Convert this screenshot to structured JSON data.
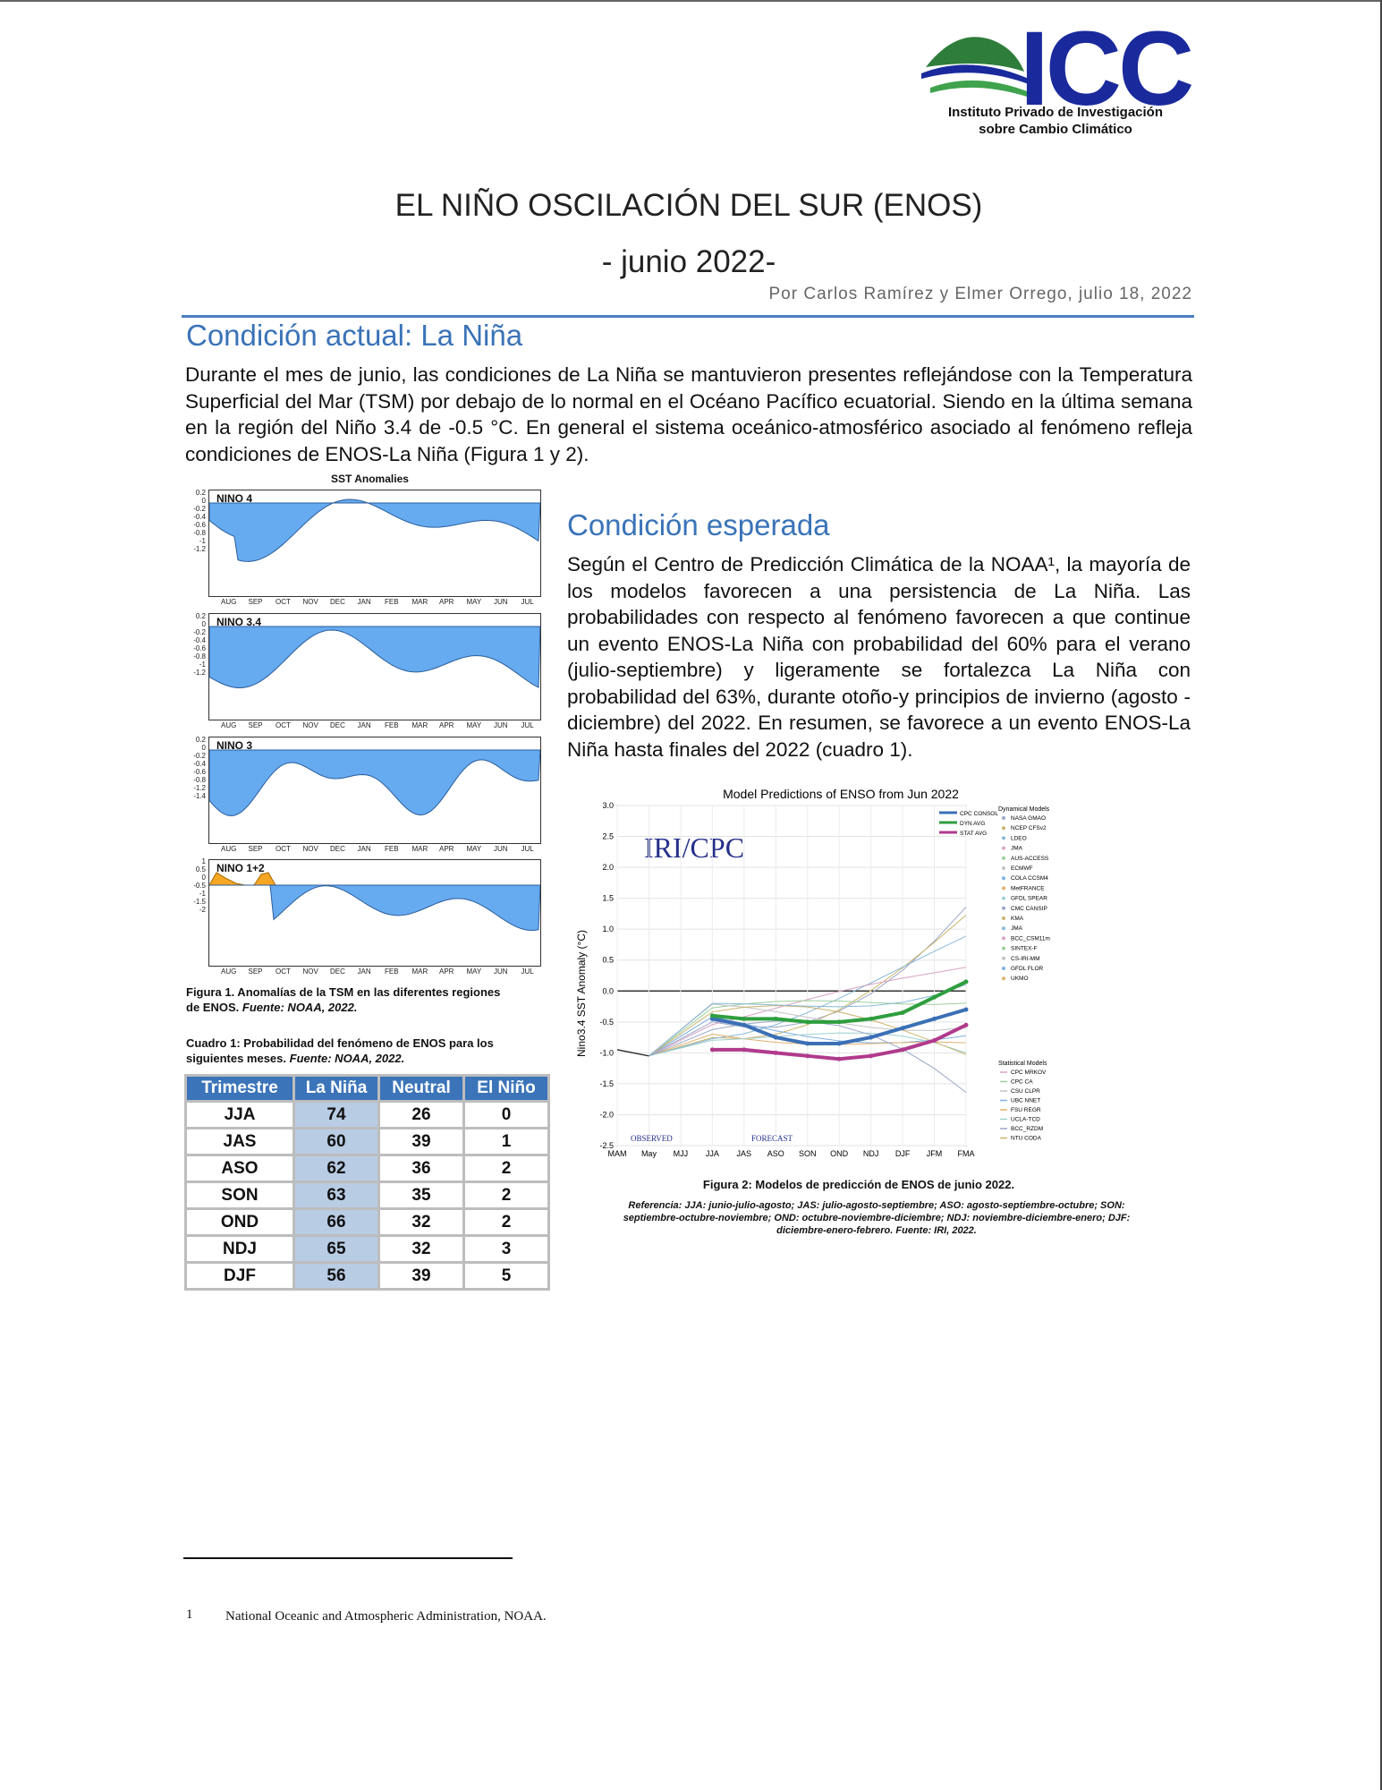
{
  "logo": {
    "letters": "ICC",
    "subtitle_line1": "Instituto Privado de Investigación",
    "subtitle_line2": "sobre Cambio Climático"
  },
  "title_line1": "EL NIÑO OSCILACIÓN DEL SUR (ENOS)",
  "title_line2": "- junio 2022-",
  "byline": "Por Carlos Ramírez y Elmer Orrego, julio 18, 2022",
  "section1": {
    "heading": "Condición actual: La Niña",
    "text": "Durante el mes de junio, las condiciones de La Niña se mantuvieron presentes reflejándose con la Temperatura Superficial del Mar (TSM) por debajo de lo normal en el Océano Pacífico ecuatorial. Siendo en la última semana en la región del Niño 3.4 de -0.5 °C. En general el sistema oceánico-atmosférico asociado al fenómeno refleja condiciones de ENOS-La Niña (Figura 1 y 2)."
  },
  "section2": {
    "heading": "Condición esperada",
    "text": "Según el Centro de Predicción Climática de la NOAA¹, la mayoría de los modelos favorecen a una persistencia de La Niña. Las probabilidades con respecto al fenómeno favorecen a que continue un evento ENOS-La Niña con probabilidad del 60% para el verano (julio-septiembre) y ligeramente se fortalezca La Niña con probabilidad del 63%, durante otoño-y principios de invierno (agosto - diciembre) del 2022. En resumen, se favorece a un evento ENOS-La Niña hasta finales del 2022 (cuadro 1)."
  },
  "figure1": {
    "header": "SST Anomalies",
    "panels": [
      "NINO 4",
      "NINO 3.4",
      "NINO 3",
      "NINO 1+2"
    ],
    "months": [
      "AUG",
      "SEP",
      "OCT",
      "NOV",
      "DEC",
      "JAN",
      "FEB",
      "MAR",
      "APR",
      "MAY",
      "JUN",
      "JUL"
    ],
    "caption": "Figura 1. Anomalías de la TSM en las diferentes regiones de ENOS.",
    "caption_source": "Fuente: NOAA, 2022."
  },
  "table_caption": "Cuadro 1: Probabilidad del fenómeno de ENOS para los siguientes meses.",
  "table_source": "Fuente: NOAA, 2022.",
  "table": {
    "headers": [
      "Trimestre",
      "La Niña",
      "Neutral",
      "El Niño"
    ],
    "rows": [
      [
        "JJA",
        "74",
        "26",
        "0"
      ],
      [
        "JAS",
        "60",
        "39",
        "1"
      ],
      [
        "ASO",
        "62",
        "36",
        "2"
      ],
      [
        "SON",
        "63",
        "35",
        "2"
      ],
      [
        "OND",
        "66",
        "32",
        "2"
      ],
      [
        "NDJ",
        "65",
        "32",
        "3"
      ],
      [
        "DJF",
        "56",
        "39",
        "5"
      ]
    ]
  },
  "chart_data": {
    "type": "line",
    "title": "Model Predictions of ENSO from Jun 2022",
    "watermark": "IRI/CPC",
    "ylabel": "Nino3.4 SST Anomaly (°C)",
    "ylim": [
      -2.5,
      3.0
    ],
    "yticks": [
      "3.0",
      "2.5",
      "2.0",
      "1.5",
      "1.0",
      "0.5",
      "0.0",
      "-0.5",
      "-1.0",
      "-1.5",
      "-2.0",
      "-2.5"
    ],
    "categories": [
      "MAM",
      "May",
      "MJJ",
      "JJA",
      "JAS",
      "ASO",
      "SON",
      "OND",
      "NDJ",
      "DJF",
      "JFM",
      "FMA"
    ],
    "observed_label": "OBSERVED",
    "forecast_label": "FORECAST",
    "observed": [
      -0.95,
      -1.05
    ],
    "series": [
      {
        "name": "CPC CONSOL",
        "color": "#3b6fb6",
        "values": [
          null,
          null,
          null,
          -0.45,
          -0.55,
          -0.75,
          -0.85,
          -0.85,
          -0.75,
          -0.6,
          -0.45,
          -0.3
        ]
      },
      {
        "name": "DYN AVG",
        "color": "#2e9e3e",
        "values": [
          null,
          null,
          null,
          -0.4,
          -0.45,
          -0.45,
          -0.5,
          -0.5,
          -0.45,
          -0.35,
          -0.1,
          0.15
        ]
      },
      {
        "name": "STAT AVG",
        "color": "#b03a8c",
        "values": [
          null,
          null,
          null,
          -0.95,
          -0.95,
          -1.0,
          -1.05,
          -1.1,
          -1.05,
          -0.95,
          -0.8,
          -0.55
        ]
      }
    ],
    "legend_dynamical_title": "Dynamical Models",
    "legend_dynamical": [
      "NASA GMAO",
      "NCEP CFSv2",
      "LDEO",
      "JMA",
      "AUS-ACCESS",
      "ECMWF",
      "COLA CCSM4",
      "MetFRANCE",
      "GFDL SPEAR",
      "CMC CANSIP",
      "KMA",
      "JMA",
      "BCC_CSM11m",
      "SINTEX-F",
      "CS-IRI-MM",
      "GFDL FLOR",
      "UKMO"
    ],
    "legend_statistical_title": "Statistical Models",
    "legend_statistical": [
      "CPC MRKOV",
      "CPC CA",
      "CSU CLPR",
      "UBC NNET",
      "FSU REGR",
      "UCLA-TCD",
      "BCC_RZDM",
      "NTU CODA"
    ]
  },
  "figure2": {
    "caption": "Figura 2: Modelos de predicción de ENOS de junio 2022.",
    "reference": "Referencia: JJA: junio-julio-agosto; JAS: julio-agosto-septiembre; ASO: agosto-septiembre-octubre; SON: septiembre-octubre-noviembre; OND: octubre-noviembre-diciembre; NDJ: noviembre-diciembre-enero; DJF: diciembre-enero-febrero. Fuente: IRI, 2022."
  },
  "footnote": {
    "number": "1",
    "text": "National Oceanic and Atmospheric Administration, NOAA."
  },
  "colors": {
    "accent": "#3a73b8",
    "table_header": "#3b74b9",
    "nina_cell": "#b8cce4",
    "anomaly_fill": "#66aaf0",
    "warm_fill": "#f5a623"
  }
}
